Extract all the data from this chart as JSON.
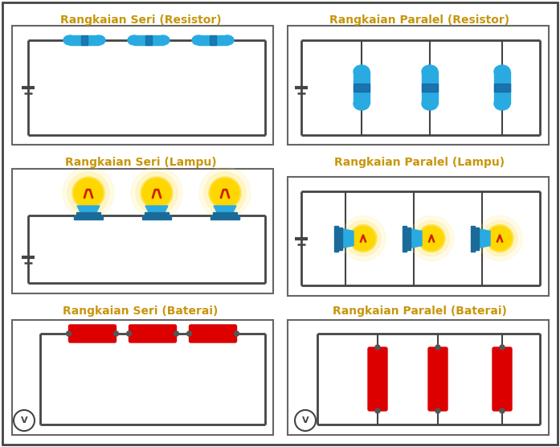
{
  "title_color": "#C8960C",
  "bg_color": "#FFFFFF",
  "wire_color": "#444444",
  "resistor_color": "#29ABE2",
  "resistor_dark": "#1565A0",
  "battery_color": "#DD0000",
  "battery_connector": "#555555",
  "voltmeter_color": "#FFFFFF",
  "lamp_bulb": "#FFD700",
  "lamp_glow1": "#FFE566",
  "lamp_glow2": "#FFA500",
  "lamp_base_top": "#29ABE2",
  "lamp_base_bot": "#1A6B9A",
  "lamp_filament": "#CC2200",
  "outer_border": "#444444",
  "panel_border": "#666666",
  "titles": {
    "tl": "Rangkaian Seri (Resistor)",
    "tr": "Rangkaian Paralel (Resistor)",
    "ml": "Rangkaian Seri (Lampu)",
    "mr": "Rangkaian Paralel (Lampu)",
    "bl": "Rangkaian Seri (Baterai)",
    "br": "Rangkaian Paralel (Baterai)"
  },
  "figsize": [
    6.97,
    5.56
  ],
  "dpi": 100
}
